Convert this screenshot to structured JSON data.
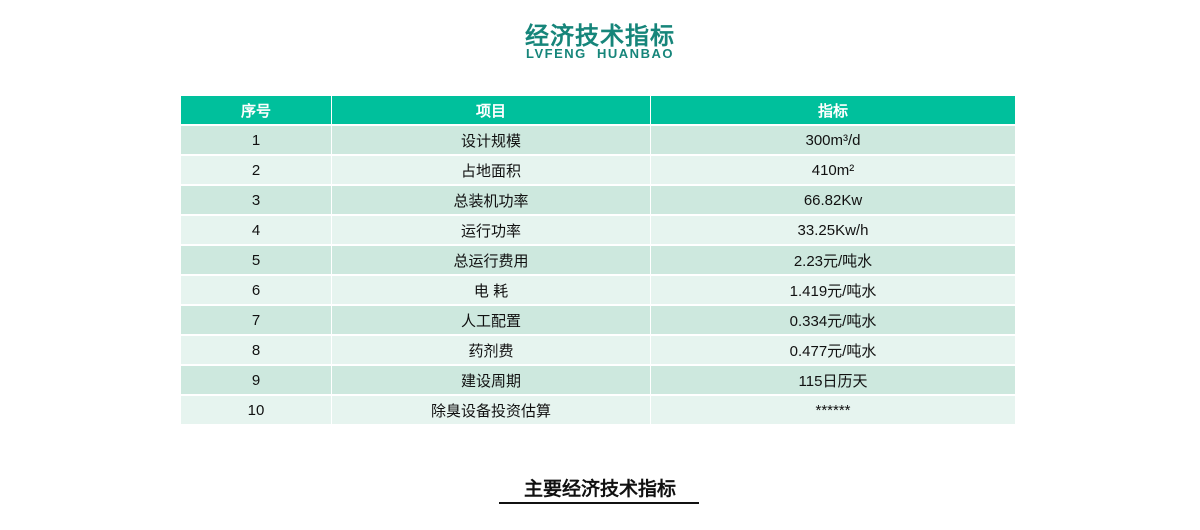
{
  "header": {
    "title": "经济技术指标",
    "subtitle": "LVFENG  HUANBAO"
  },
  "table": {
    "columns": [
      "序号",
      "项目",
      "指标"
    ],
    "rows": [
      [
        "1",
        "设计规模",
        "300m³/d"
      ],
      [
        "2",
        "占地面积",
        "410m²"
      ],
      [
        "3",
        "总装机功率",
        "66.82Kw"
      ],
      [
        "4",
        "运行功率",
        "33.25Kw/h"
      ],
      [
        "5",
        "总运行费用",
        "2.23元/吨水"
      ],
      [
        "6",
        "电 耗",
        "1.419元/吨水"
      ],
      [
        "7",
        "人工配置",
        "0.334元/吨水"
      ],
      [
        "8",
        "药剂费",
        "0.477元/吨水"
      ],
      [
        "9",
        "建设周期",
        "115日历天"
      ],
      [
        "10",
        "除臭设备投资估算",
        "******"
      ]
    ]
  },
  "caption": "主要经济技术指标",
  "colors": {
    "accent": "#16857a",
    "header_bg": "#00c09c",
    "row_odd": "#cde8de",
    "row_even": "#e6f4ef"
  }
}
